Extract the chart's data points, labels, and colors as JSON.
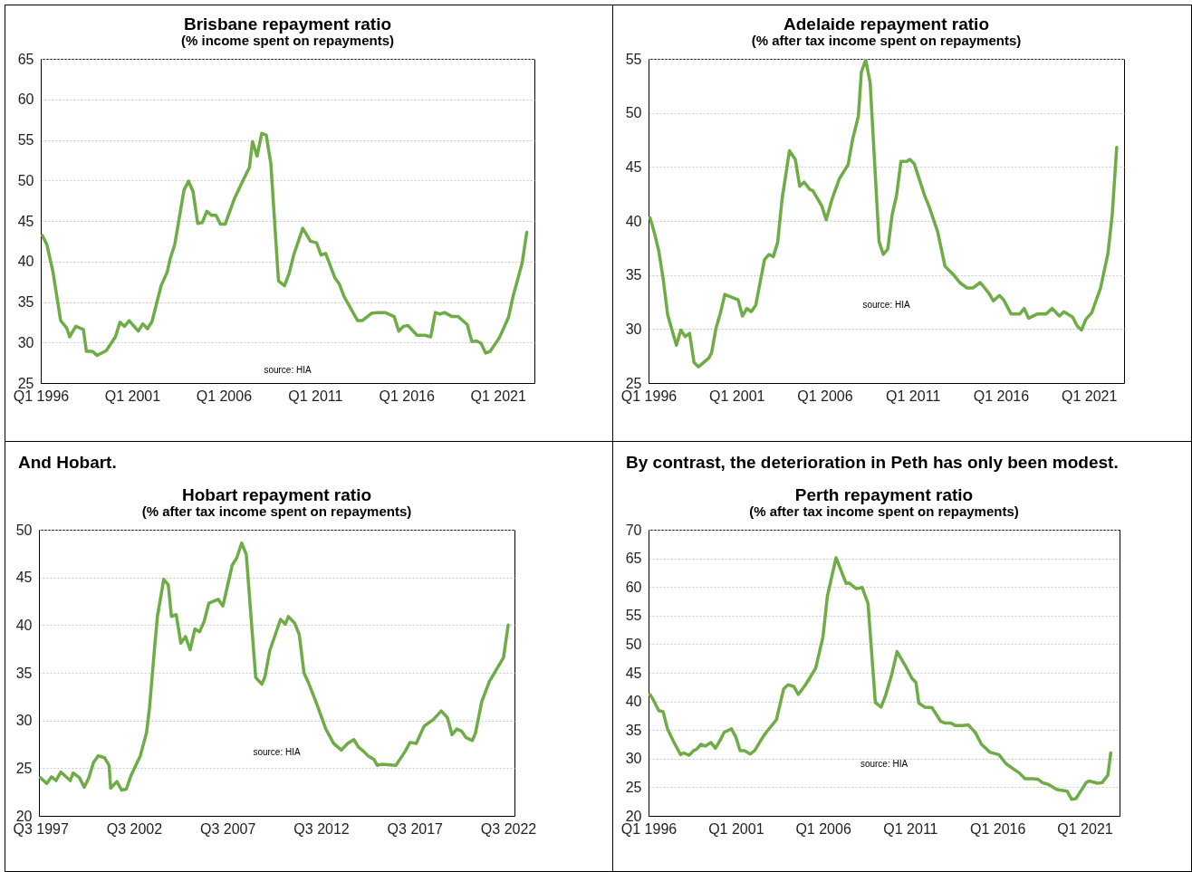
{
  "chart_data": [
    {
      "type": "line",
      "title": "Brisbane repayment ratio",
      "subtitle": "(% income spent on repayments)",
      "annotations": [
        "source: HIA"
      ],
      "x": [
        "1996-02",
        "1996-05",
        "1996-09",
        "1997-02",
        "1997-06",
        "1997-08",
        "1997-12",
        "1998-05",
        "1998-07",
        "1998-11",
        "1999-02",
        "1999-08",
        "2000-02",
        "2000-05",
        "2000-08",
        "2000-11",
        "2001-05",
        "2001-08",
        "2001-11",
        "2002-02",
        "2002-08",
        "2002-12",
        "2003-02",
        "2003-05",
        "2003-11",
        "2004-02",
        "2004-05",
        "2004-08",
        "2004-11",
        "2005-02",
        "2005-05",
        "2005-08",
        "2005-11",
        "2006-02",
        "2006-08",
        "2007-02",
        "2007-06",
        "2007-08",
        "2007-11",
        "2008-02",
        "2008-05",
        "2008-08",
        "2009-01",
        "2009-05",
        "2009-08",
        "2009-11",
        "2010-05",
        "2010-10",
        "2011-02",
        "2011-05",
        "2011-08",
        "2012-02",
        "2012-05",
        "2012-08",
        "2013-05",
        "2013-08",
        "2014-02",
        "2014-06",
        "2014-11",
        "2015-05",
        "2015-08",
        "2015-11",
        "2016-02",
        "2016-08",
        "2017-01",
        "2017-05",
        "2017-08",
        "2017-11",
        "2018-02",
        "2018-07",
        "2018-11",
        "2019-05",
        "2019-08",
        "2019-11",
        "2020-02",
        "2020-05",
        "2020-08",
        "2021-02",
        "2021-08",
        "2021-11",
        "2022-05",
        "2022-08"
      ],
      "series": [
        {
          "color": "#6eac46",
          "values": [
            43.2,
            42.1,
            38.7,
            32.7,
            31.8,
            30.7,
            32.0,
            31.6,
            28.9,
            28.9,
            28.4,
            29.0,
            30.7,
            32.5,
            32.0,
            32.7,
            31.4,
            32.3,
            31.7,
            32.6,
            37.0,
            38.7,
            40.4,
            42.1,
            48.8,
            49.9,
            48.6,
            44.7,
            44.8,
            46.2,
            45.7,
            45.7,
            44.6,
            44.6,
            47.7,
            50.1,
            51.6,
            54.8,
            53.0,
            55.8,
            55.6,
            52.1,
            37.6,
            37.0,
            38.5,
            40.8,
            44.1,
            42.5,
            42.3,
            40.8,
            41.0,
            38.0,
            37.2,
            35.7,
            32.7,
            32.7,
            33.6,
            33.7,
            33.7,
            33.2,
            31.4,
            32.0,
            32.1,
            30.9,
            30.9,
            30.7,
            33.7,
            33.5,
            33.7,
            33.2,
            33.2,
            32.2,
            30.1,
            30.2,
            29.9,
            28.7,
            28.9,
            30.6,
            33.1,
            35.7,
            39.8,
            43.6
          ]
        }
      ],
      "xlim": [
        "1996-01",
        "2023-01"
      ],
      "xticks": [
        {
          "value": "1996-01",
          "label": "Q1 1996"
        },
        {
          "value": "2001-01",
          "label": "Q1 2001"
        },
        {
          "value": "2006-01",
          "label": "Q1 2006"
        },
        {
          "value": "2011-01",
          "label": "Q1 2011"
        },
        {
          "value": "2016-01",
          "label": "Q1 2016"
        },
        {
          "value": "2021-01",
          "label": "Q1 2021"
        }
      ],
      "ylim": [
        25,
        65
      ],
      "yticks": [
        25,
        30,
        35,
        40,
        45,
        50,
        55,
        60,
        65
      ],
      "grid": "y"
    },
    {
      "type": "line",
      "title": "Adelaide repayment ratio",
      "subtitle": "(% after tax income spent on repayments)",
      "annotations": [
        "source: HIA"
      ],
      "x": [
        "1996-02",
        "1996-05",
        "1996-08",
        "1996-11",
        "1997-02",
        "1997-08",
        "1997-11",
        "1998-02",
        "1998-05",
        "1998-08",
        "1998-11",
        "1999-06",
        "1999-08",
        "1999-11",
        "2000-02",
        "2000-05",
        "2001-02",
        "2001-05",
        "2001-08",
        "2001-11",
        "2002-02",
        "2002-08",
        "2002-11",
        "2003-02",
        "2003-05",
        "2003-08",
        "2004-01",
        "2004-05",
        "2004-08",
        "2004-11",
        "2005-03",
        "2005-05",
        "2005-11",
        "2006-02",
        "2006-06",
        "2006-11",
        "2007-05",
        "2007-08",
        "2007-12",
        "2008-02",
        "2008-05",
        "2008-08",
        "2009-02",
        "2009-05",
        "2009-08",
        "2009-11",
        "2010-02",
        "2010-05",
        "2010-09",
        "2010-11",
        "2011-02",
        "2011-09",
        "2011-12",
        "2012-06",
        "2012-11",
        "2013-05",
        "2013-09",
        "2014-02",
        "2014-06",
        "2014-11",
        "2015-05",
        "2015-08",
        "2015-12",
        "2016-03",
        "2016-08",
        "2017-02",
        "2017-05",
        "2017-08",
        "2018-02",
        "2018-08",
        "2018-12",
        "2019-05",
        "2019-08",
        "2020-02",
        "2020-05",
        "2020-08",
        "2020-11",
        "2021-03",
        "2021-09",
        "2022-02",
        "2022-05",
        "2022-08"
      ],
      "series": [
        {
          "color": "#6eac46",
          "values": [
            40.3,
            38.9,
            37.2,
            34.6,
            31.3,
            28.5,
            29.9,
            29.3,
            29.6,
            26.9,
            26.5,
            27.3,
            27.8,
            30.1,
            31.5,
            33.2,
            32.7,
            31.2,
            31.9,
            31.6,
            32.2,
            36.4,
            36.9,
            36.7,
            38.0,
            42.0,
            46.5,
            45.7,
            43.2,
            43.6,
            42.9,
            42.8,
            41.4,
            40.1,
            42.0,
            43.9,
            45.2,
            47.5,
            49.7,
            53.8,
            54.9,
            52.8,
            38.1,
            36.9,
            37.4,
            40.6,
            42.4,
            45.5,
            45.5,
            45.7,
            45.3,
            42.4,
            41.4,
            39.0,
            35.8,
            35.0,
            34.3,
            33.8,
            33.8,
            34.3,
            33.3,
            32.6,
            33.1,
            32.7,
            31.4,
            31.4,
            31.9,
            31.0,
            31.4,
            31.4,
            31.9,
            31.2,
            31.6,
            31.1,
            30.3,
            29.9,
            30.9,
            31.5,
            33.8,
            37.0,
            40.6,
            46.8
          ]
        }
      ],
      "xlim": [
        "1996-01",
        "2023-01"
      ],
      "xticks": [
        {
          "value": "1996-01",
          "label": "Q1 1996"
        },
        {
          "value": "2001-01",
          "label": "Q1 2001"
        },
        {
          "value": "2006-01",
          "label": "Q1 2006"
        },
        {
          "value": "2011-01",
          "label": "Q1 2011"
        },
        {
          "value": "2016-01",
          "label": "Q1 2016"
        },
        {
          "value": "2021-01",
          "label": "Q1 2021"
        }
      ],
      "ylim": [
        25,
        55
      ],
      "yticks": [
        25,
        30,
        35,
        40,
        45,
        50,
        55
      ],
      "grid": "y"
    },
    {
      "type": "line",
      "title": "Hobart repayment ratio",
      "subtitle": "(% after tax income spent on repayments)",
      "annotations": [
        "And Hobart.",
        "source: HIA"
      ],
      "x": [
        "1997-07",
        "1997-11",
        "1998-02",
        "1998-05",
        "1998-08",
        "1999-02",
        "1999-04",
        "1999-08",
        "1999-11",
        "2000-02",
        "2000-05",
        "2000-08",
        "2000-12",
        "2001-03",
        "2001-04",
        "2001-08",
        "2001-11",
        "2002-02",
        "2002-05",
        "2002-11",
        "2003-03",
        "2003-05",
        "2003-08",
        "2003-10",
        "2004-02",
        "2004-05",
        "2004-07",
        "2004-10",
        "2005-01",
        "2005-04",
        "2005-07",
        "2005-10",
        "2006-01",
        "2006-04",
        "2006-07",
        "2007-01",
        "2007-04",
        "2007-10",
        "2008-01",
        "2008-04",
        "2008-07",
        "2008-10",
        "2009-01",
        "2009-05",
        "2009-07",
        "2009-10",
        "2010-05",
        "2010-08",
        "2010-10",
        "2011-02",
        "2011-05",
        "2011-08",
        "2011-11",
        "2012-04",
        "2012-10",
        "2013-03",
        "2013-08",
        "2013-12",
        "2014-04",
        "2014-07",
        "2014-10",
        "2015-01",
        "2015-05",
        "2015-07",
        "2015-10",
        "2016-07",
        "2017-01",
        "2017-04",
        "2017-08",
        "2018-01",
        "2018-07",
        "2018-12",
        "2019-04",
        "2019-07",
        "2019-10",
        "2020-01",
        "2020-04",
        "2020-08",
        "2020-10",
        "2021-02",
        "2021-07",
        "2022-04",
        "2022-07"
      ],
      "series": [
        {
          "color": "#6eac46",
          "values": [
            24.0,
            23.4,
            24.1,
            23.7,
            24.6,
            23.7,
            24.5,
            24.0,
            23.0,
            24.0,
            25.6,
            26.3,
            26.1,
            25.3,
            22.9,
            23.6,
            22.7,
            22.8,
            24.2,
            26.3,
            28.7,
            31.4,
            37.3,
            40.9,
            44.8,
            44.2,
            40.9,
            41.1,
            38.1,
            38.8,
            37.4,
            39.6,
            39.3,
            40.4,
            42.3,
            42.7,
            42.0,
            46.3,
            47.1,
            48.6,
            47.4,
            40.9,
            34.5,
            33.8,
            34.6,
            37.3,
            40.6,
            40.1,
            40.9,
            40.2,
            39.0,
            35.0,
            33.9,
            31.8,
            29.1,
            27.6,
            26.9,
            27.6,
            28.0,
            27.2,
            26.8,
            26.3,
            25.9,
            25.3,
            25.4,
            25.3,
            26.8,
            27.7,
            27.6,
            29.4,
            30.1,
            31.0,
            30.3,
            28.5,
            29.1,
            28.9,
            28.2,
            27.9,
            28.7,
            32.0,
            34.1,
            36.6,
            40.0
          ]
        }
      ],
      "xlim": [
        "1997-06",
        "2022-11"
      ],
      "xticks": [
        {
          "value": "1997-07",
          "label": "Q3 1997"
        },
        {
          "value": "2002-07",
          "label": "Q3 2002"
        },
        {
          "value": "2007-07",
          "label": "Q3 2007"
        },
        {
          "value": "2012-07",
          "label": "Q3 2012"
        },
        {
          "value": "2017-07",
          "label": "Q3 2017"
        },
        {
          "value": "2022-07",
          "label": "Q3 2022"
        }
      ],
      "ylim": [
        20,
        50
      ],
      "yticks": [
        20,
        25,
        30,
        35,
        40,
        45,
        50
      ],
      "grid": "y"
    },
    {
      "type": "line",
      "title": "Perth repayment ratio",
      "subtitle": "(% after tax income spent on repayments)",
      "annotations": [
        "By contrast, the deterioration in Peth has only been modest.",
        "source: HIA"
      ],
      "x": [
        "1996-02",
        "1996-04",
        "1996-08",
        "1996-11",
        "1997-02",
        "1997-06",
        "1997-11",
        "1998-01",
        "1998-05",
        "1998-08",
        "1998-10",
        "1999-01",
        "1999-04",
        "1999-08",
        "1999-11",
        "2000-02",
        "2000-05",
        "2000-10",
        "2001-01",
        "2001-04",
        "2001-07",
        "2001-11",
        "2002-02",
        "2002-08",
        "2002-10",
        "2003-05",
        "2003-10",
        "2004-01",
        "2004-05",
        "2004-08",
        "2005-01",
        "2005-08",
        "2006-01",
        "2006-04",
        "2006-10",
        "2007-05",
        "2007-07",
        "2007-12",
        "2008-04",
        "2008-08",
        "2009-01",
        "2009-05",
        "2009-08",
        "2009-12",
        "2010-04",
        "2010-10",
        "2011-02",
        "2011-05",
        "2011-07",
        "2011-11",
        "2012-04",
        "2012-10",
        "2013-01",
        "2013-05",
        "2013-08",
        "2014-01",
        "2014-05",
        "2014-10",
        "2015-02",
        "2015-08",
        "2016-02",
        "2016-07",
        "2017-04",
        "2017-08",
        "2018-01",
        "2018-05",
        "2018-08",
        "2018-12",
        "2019-06",
        "2020-01",
        "2020-04",
        "2020-07",
        "2021-02",
        "2021-04",
        "2021-10",
        "2022-01",
        "2022-05",
        "2022-07"
      ],
      "series": [
        {
          "color": "#6eac46",
          "values": [
            41.2,
            40.4,
            38.4,
            38.2,
            35.2,
            33.1,
            30.7,
            31.0,
            30.6,
            31.4,
            31.6,
            32.5,
            32.2,
            32.8,
            31.8,
            33.1,
            34.6,
            35.2,
            33.8,
            31.4,
            31.4,
            30.8,
            31.4,
            33.9,
            34.6,
            36.8,
            42.2,
            42.9,
            42.6,
            41.2,
            42.9,
            45.8,
            51.3,
            58.3,
            65.1,
            60.6,
            60.7,
            59.7,
            59.9,
            57.1,
            39.8,
            39.0,
            41.0,
            44.4,
            48.7,
            46.1,
            44.1,
            43.3,
            39.7,
            39.0,
            38.9,
            36.5,
            36.2,
            36.2,
            35.8,
            35.8,
            35.9,
            34.5,
            32.5,
            31.1,
            30.7,
            29.1,
            27.5,
            26.5,
            26.5,
            26.4,
            25.8,
            25.5,
            24.6,
            24.3,
            22.9,
            23.0,
            25.8,
            26.1,
            25.7,
            25.8,
            27.1,
            31.0
          ]
        }
      ],
      "xlim": [
        "1996-01",
        "2023-01"
      ],
      "xticks": [
        {
          "value": "1996-01",
          "label": "Q1 1996"
        },
        {
          "value": "2001-01",
          "label": "Q1 2001"
        },
        {
          "value": "2006-01",
          "label": "Q1 2006"
        },
        {
          "value": "2011-01",
          "label": "Q1 2011"
        },
        {
          "value": "2016-01",
          "label": "Q1 2016"
        },
        {
          "value": "2021-01",
          "label": "Q1 2021"
        }
      ],
      "ylim": [
        20,
        70
      ],
      "yticks": [
        20,
        25,
        30,
        35,
        40,
        45,
        50,
        55,
        60,
        65,
        70
      ],
      "grid": "y"
    }
  ]
}
